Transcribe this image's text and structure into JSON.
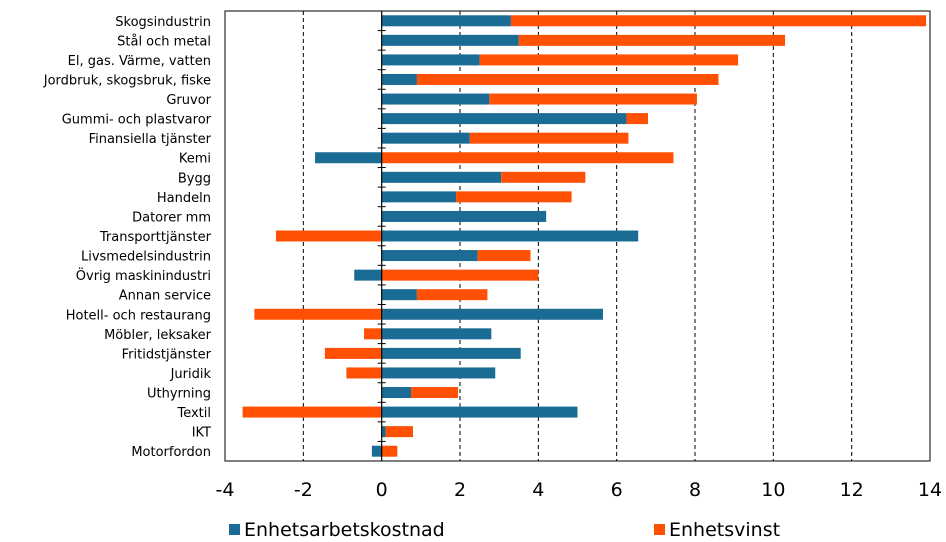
{
  "chart_data": {
    "type": "bar",
    "orientation": "horizontal",
    "stacked": true,
    "categories": [
      "Skogsindustrin",
      "Stål och metal",
      "El, gas. Värme, vatten",
      "Jordbruk, skogsbruk, fiske",
      "Gruvor",
      "Gummi- och plastvaror",
      "Finansiella tjänster",
      "Kemi",
      "Bygg",
      "Handeln",
      "Datorer mm",
      "Transporttjänster",
      "Livsmedelsindustrin",
      "Övrig maskinindustri",
      "Annan service",
      "Hotell- och restaurang",
      "Möbler, leksaker",
      "Fritidstjänster",
      "Juridik",
      "Uthyrning",
      "Textil",
      "IKT",
      "Motorfordon"
    ],
    "series": [
      {
        "name": "Enhetsarbetskostnad",
        "color": "#1a6c94",
        "values": [
          3.3,
          3.5,
          2.5,
          0.9,
          2.75,
          6.25,
          2.25,
          -1.7,
          3.05,
          1.9,
          4.2,
          6.55,
          2.45,
          -0.7,
          0.9,
          5.65,
          2.8,
          3.55,
          2.9,
          0.75,
          5.0,
          0.1,
          -0.25
        ]
      },
      {
        "name": "Enhetsvinst",
        "color": "#ff5004",
        "values": [
          10.6,
          6.8,
          6.6,
          7.7,
          5.3,
          0.55,
          4.05,
          7.45,
          2.15,
          2.95,
          0.0,
          -2.7,
          1.35,
          4.0,
          1.8,
          -3.25,
          -0.45,
          -1.45,
          -0.9,
          1.2,
          -3.55,
          0.7,
          0.4
        ]
      }
    ],
    "xlim": [
      -4,
      14
    ],
    "xticks": [
      -4,
      -2,
      0,
      2,
      4,
      6,
      8,
      10,
      12,
      14
    ],
    "xtick_labels": [
      "-4",
      "-2",
      "0",
      "2",
      "4",
      "6",
      "8",
      "10",
      "12",
      "14"
    ],
    "grid": "vertical dashed",
    "legend_position": "bottom"
  }
}
